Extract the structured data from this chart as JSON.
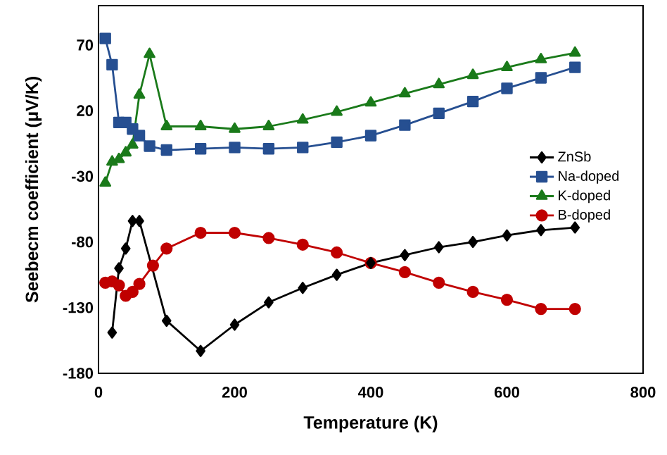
{
  "chart_data": {
    "type": "line",
    "xlabel": "Temperature (K)",
    "ylabel": "Seebecm coefficient (μV/K)",
    "xlim": [
      0,
      800
    ],
    "ylim": [
      -180,
      100
    ],
    "xticks": [
      0,
      200,
      400,
      600,
      800
    ],
    "yticks": [
      -180,
      -130,
      -80,
      -30,
      20,
      70
    ],
    "grid": false,
    "legend": "right",
    "line_style": "solid",
    "series": [
      {
        "name": "ZnSb",
        "color": "#000000",
        "marker": "diamond",
        "x": [
          20,
          30,
          40,
          50,
          60,
          100,
          150,
          200,
          250,
          300,
          350,
          400,
          450,
          500,
          550,
          600,
          650,
          700
        ],
        "values": [
          -149,
          -100,
          -85,
          -64,
          -64,
          -140,
          -163,
          -143,
          -126,
          -115,
          -105,
          -96,
          -90,
          -84,
          -80,
          -75,
          -71,
          -69
        ]
      },
      {
        "name": "Na-doped",
        "color": "#264f91",
        "marker": "square",
        "x": [
          10,
          20,
          30,
          40,
          50,
          60,
          75,
          100,
          150,
          200,
          250,
          300,
          350,
          400,
          450,
          500,
          550,
          600,
          650,
          700
        ],
        "values": [
          75,
          55,
          11,
          11,
          6,
          1,
          -7,
          -10,
          -9,
          -8,
          -9,
          -8,
          -4,
          1,
          9,
          18,
          27,
          37,
          45,
          53
        ]
      },
      {
        "name": "K-doped",
        "color": "#1a7a1a",
        "marker": "triangle",
        "x": [
          10,
          20,
          30,
          40,
          50,
          60,
          75,
          100,
          150,
          200,
          250,
          300,
          350,
          400,
          450,
          500,
          550,
          600,
          650,
          700
        ],
        "values": [
          -35,
          -19,
          -17,
          -12,
          -6,
          32,
          63,
          8,
          8,
          6,
          8,
          13,
          19,
          26,
          33,
          40,
          47,
          53,
          59,
          64
        ]
      },
      {
        "name": "B-doped",
        "color": "#c00000",
        "marker": "circle",
        "x": [
          10,
          20,
          30,
          40,
          50,
          60,
          80,
          100,
          150,
          200,
          250,
          300,
          350,
          400,
          450,
          500,
          550,
          600,
          650,
          700
        ],
        "values": [
          -111,
          -110,
          -113,
          -121,
          -118,
          -112,
          -98,
          -85,
          -73,
          -73,
          -77,
          -82,
          -88,
          -96,
          -103,
          -111,
          -118,
          -124,
          -131,
          -131
        ]
      }
    ]
  }
}
